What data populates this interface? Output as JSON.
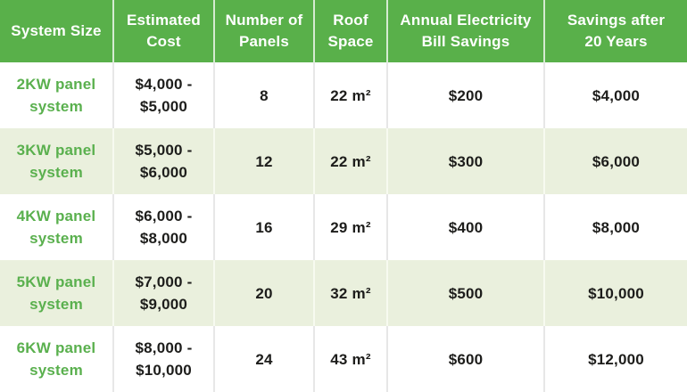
{
  "colors": {
    "header_bg": "#59b04a",
    "header_text": "#ffffff",
    "row_bg": "#ffffff",
    "row_alt_bg": "#eaf0dd",
    "system_text_green": "#5ab04e",
    "body_text": "#1d1d1b"
  },
  "header": {
    "system_size": "System Size",
    "estimated_cost": "Estimated\nCost",
    "number_of_panels": "Number of\nPanels",
    "roof_space": "Roof\nSpace",
    "annual_bill_savings": "Annual Electricity\nBill Savings",
    "savings_20_years": "Savings after\n20 Years"
  },
  "rows": [
    {
      "system_size": "2KW panel\nsystem",
      "estimated_cost": "$4,000 -\n$5,000",
      "panels": "8",
      "roof_space": "22 m²",
      "annual_savings": "$200",
      "savings_20_years": "$4,000"
    },
    {
      "system_size": "3KW panel\nsystem",
      "estimated_cost": "$5,000 -\n$6,000",
      "panels": "12",
      "roof_space": "22 m²",
      "annual_savings": "$300",
      "savings_20_years": "$6,000"
    },
    {
      "system_size": "4KW panel\nsystem",
      "estimated_cost": "$6,000 -\n$8,000",
      "panels": "16",
      "roof_space": "29 m²",
      "annual_savings": "$400",
      "savings_20_years": "$8,000"
    },
    {
      "system_size": "5KW panel\nsystem",
      "estimated_cost": "$7,000 -\n$9,000",
      "panels": "20",
      "roof_space": "32 m²",
      "annual_savings": "$500",
      "savings_20_years": "$10,000"
    },
    {
      "system_size": "6KW panel\nsystem",
      "estimated_cost": "$8,000 -\n$10,000",
      "panels": "24",
      "roof_space": "43 m²",
      "annual_savings": "$600",
      "savings_20_years": "$12,000"
    }
  ],
  "chart_data": {
    "type": "table",
    "columns": [
      "System Size",
      "Estimated Cost",
      "Number of Panels",
      "Roof Space",
      "Annual Electricity Bill Savings",
      "Savings after 20 Years"
    ],
    "rows": [
      [
        "2KW panel system",
        "$4,000 - $5,000",
        8,
        "22 m²",
        "$200",
        "$4,000"
      ],
      [
        "3KW panel system",
        "$5,000 - $6,000",
        12,
        "22 m²",
        "$300",
        "$6,000"
      ],
      [
        "4KW panel system",
        "$6,000 - $8,000",
        16,
        "29 m²",
        "$400",
        "$8,000"
      ],
      [
        "5KW panel system",
        "$7,000 - $9,000",
        20,
        "32 m²",
        "$500",
        "$10,000"
      ],
      [
        "6KW panel system",
        "$8,000 - $10,000",
        24,
        "43 m²",
        "$600",
        "$12,000"
      ]
    ],
    "layout_hints": {
      "header_fill": "#59b04a",
      "alternating_row_fill": [
        "#ffffff",
        "#eaf0dd"
      ],
      "grid": "vertical separators only"
    }
  }
}
